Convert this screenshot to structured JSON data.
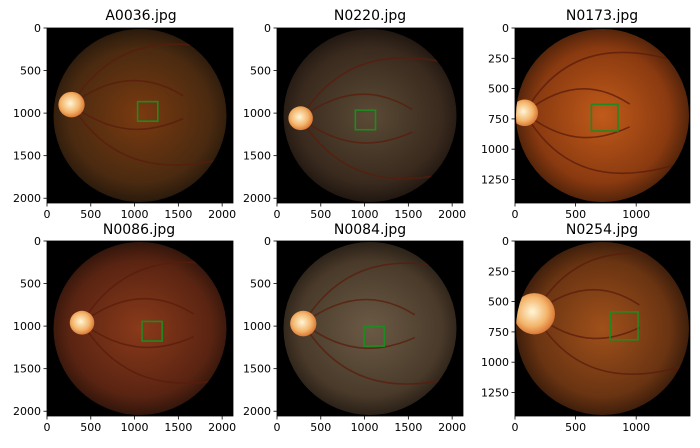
{
  "figure": {
    "background": "#ffffff",
    "box_color": "#1f8a1f",
    "panels": [
      {
        "title": "A0036.jpg",
        "image_size": [
          2124,
          2056
        ],
        "xticks": [
          "0",
          "500",
          "1000",
          "1500",
          "2000"
        ],
        "yticks": [
          "0",
          "500",
          "1000",
          "1500",
          "2000"
        ],
        "box": {
          "cx": 1150,
          "cy": 980,
          "size": 230
        },
        "disc": {
          "x": 280,
          "y": 900,
          "r": 150
        },
        "fundus": {
          "c1": "#7a3a10",
          "c2": "#4a2a10",
          "c3": "#1a120a"
        }
      },
      {
        "title": "N0220.jpg",
        "image_size": [
          2124,
          2056
        ],
        "xticks": [
          "0",
          "500",
          "1000",
          "1500",
          "2000"
        ],
        "yticks": [
          "0",
          "500",
          "1000",
          "1500",
          "2000"
        ],
        "box": {
          "cx": 1010,
          "cy": 1080,
          "size": 230
        },
        "disc": {
          "x": 270,
          "y": 1060,
          "r": 140
        },
        "fundus": {
          "c1": "#5a4a35",
          "c2": "#3a2a1e",
          "c3": "#140e0a"
        }
      },
      {
        "title": "N0173.jpg",
        "image_size": [
          1444,
          1444
        ],
        "xticks": [
          "0",
          "500",
          "1000"
        ],
        "yticks": [
          "0",
          "250",
          "500",
          "750",
          "1000",
          "1250"
        ],
        "box": {
          "cx": 740,
          "cy": 740,
          "size": 220
        },
        "disc": {
          "x": 80,
          "y": 700,
          "r": 110
        },
        "fundus": {
          "c1": "#c05a1a",
          "c2": "#8a3a10",
          "c3": "#3a1a08"
        }
      },
      {
        "title": "N0086.jpg",
        "image_size": [
          2124,
          2056
        ],
        "xticks": [
          "0",
          "500",
          "1000",
          "1500",
          "2000"
        ],
        "yticks": [
          "0",
          "500",
          "1000",
          "1500",
          "2000"
        ],
        "box": {
          "cx": 1200,
          "cy": 1060,
          "size": 230
        },
        "disc": {
          "x": 400,
          "y": 960,
          "r": 140
        },
        "fundus": {
          "c1": "#8a3a1a",
          "c2": "#5a2412",
          "c3": "#1e0e08"
        }
      },
      {
        "title": "N0084.jpg",
        "image_size": [
          2124,
          2056
        ],
        "xticks": [
          "0",
          "500",
          "1000",
          "1500",
          "2000"
        ],
        "yticks": [
          "0",
          "500",
          "1000",
          "1500",
          "2000"
        ],
        "box": {
          "cx": 1110,
          "cy": 1120,
          "size": 230
        },
        "disc": {
          "x": 300,
          "y": 970,
          "r": 150
        },
        "fundus": {
          "c1": "#6a5a45",
          "c2": "#4a3a2a",
          "c3": "#1a140e"
        }
      },
      {
        "title": "N0254.jpg",
        "image_size": [
          1444,
          1444
        ],
        "xticks": [
          "0",
          "500",
          "1000"
        ],
        "yticks": [
          "0",
          "250",
          "500",
          "750",
          "1000",
          "1250"
        ],
        "box": {
          "cx": 900,
          "cy": 700,
          "size": 230
        },
        "disc": {
          "x": 160,
          "y": 600,
          "r": 170
        },
        "fundus": {
          "c1": "#a0501a",
          "c2": "#6a3412",
          "c3": "#2a1408"
        }
      }
    ]
  }
}
